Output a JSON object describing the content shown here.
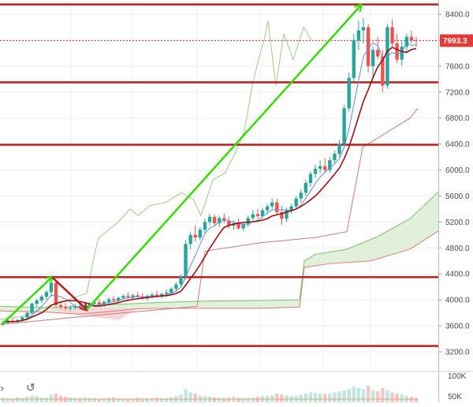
{
  "chart_data": {
    "type": "candlestick",
    "y_axis": {
      "ticks": [
        "8400.0",
        "8000.0",
        "7600.0",
        "7200.0",
        "6800.0",
        "6400.0",
        "6000.0",
        "5600.0",
        "5200.0",
        "4800.0",
        "4400.0",
        "4000.0",
        "3600.0",
        "3200.0"
      ],
      "tick_values": [
        8400,
        8000,
        7600,
        7200,
        6800,
        6400,
        6000,
        5600,
        5200,
        4800,
        4400,
        4000,
        3600,
        3200
      ],
      "range": [
        3050,
        8560
      ],
      "side": "right"
    },
    "volume_axis": {
      "ticks": [
        "100K",
        "50K"
      ],
      "tick_values": [
        100000,
        50000
      ]
    },
    "current_price": {
      "label": "7993.3",
      "value": 7993.3,
      "color": "#e53935"
    },
    "horizontal_levels": [
      8550,
      7350,
      6390,
      4350,
      3290
    ],
    "arrows": [
      {
        "from": [
          3620,
          3620
        ],
        "to": [
          4350,
          4350
        ],
        "color": "#33dd00"
      },
      {
        "from": [
          4350,
          4350
        ],
        "to": [
          3850,
          3850
        ],
        "color": "#b71c1c"
      },
      {
        "from": [
          3850,
          3850
        ],
        "to": [
          8540,
          8540
        ],
        "color": "#33dd00"
      }
    ],
    "candles_ohlc": [
      [
        3620,
        3680,
        3600,
        3650
      ],
      [
        3650,
        3700,
        3630,
        3680
      ],
      [
        3680,
        3720,
        3650,
        3660
      ],
      [
        3660,
        3700,
        3640,
        3690
      ],
      [
        3690,
        3750,
        3670,
        3730
      ],
      [
        3730,
        3820,
        3700,
        3800
      ],
      [
        3800,
        3960,
        3780,
        3940
      ],
      [
        3940,
        4020,
        3900,
        3990
      ],
      [
        3990,
        4080,
        3950,
        4050
      ],
      [
        4050,
        4150,
        4000,
        4120
      ],
      [
        4120,
        4290,
        4050,
        4260
      ],
      [
        4260,
        4300,
        3890,
        3920
      ],
      [
        3920,
        3980,
        3860,
        3890
      ],
      [
        3890,
        3950,
        3840,
        3870
      ],
      [
        3870,
        3920,
        3830,
        3880
      ],
      [
        3880,
        3940,
        3850,
        3900
      ],
      [
        3900,
        3960,
        3860,
        3870
      ],
      [
        3870,
        3930,
        3840,
        3910
      ],
      [
        3910,
        3970,
        3880,
        3940
      ],
      [
        3940,
        4000,
        3900,
        3960
      ],
      [
        3960,
        4010,
        3920,
        3930
      ],
      [
        3930,
        3990,
        3900,
        3970
      ],
      [
        3970,
        4040,
        3940,
        4010
      ],
      [
        4010,
        4060,
        3970,
        3990
      ],
      [
        3990,
        4050,
        3960,
        4030
      ],
      [
        4030,
        4080,
        4000,
        4060
      ],
      [
        4060,
        4110,
        4020,
        4040
      ],
      [
        4040,
        4090,
        4000,
        4070
      ],
      [
        4070,
        4120,
        4030,
        4050
      ],
      [
        4050,
        4100,
        4000,
        4020
      ],
      [
        4020,
        4080,
        3990,
        4060
      ],
      [
        4060,
        4110,
        4020,
        4080
      ],
      [
        4080,
        4140,
        4040,
        4060
      ],
      [
        4060,
        4110,
        4020,
        4090
      ],
      [
        4090,
        4160,
        4050,
        4110
      ],
      [
        4110,
        4200,
        4080,
        4170
      ],
      [
        4170,
        4280,
        4140,
        4240
      ],
      [
        4240,
        4390,
        4200,
        4360
      ],
      [
        4360,
        4920,
        4320,
        4860
      ],
      [
        4860,
        5050,
        4780,
        5000
      ],
      [
        5000,
        5150,
        4900,
        4960
      ],
      [
        4960,
        5120,
        4920,
        5080
      ],
      [
        5080,
        5250,
        5020,
        5200
      ],
      [
        5200,
        5330,
        5150,
        5280
      ],
      [
        5280,
        5320,
        5150,
        5180
      ],
      [
        5180,
        5300,
        5120,
        5260
      ],
      [
        5260,
        5330,
        5180,
        5220
      ],
      [
        5220,
        5280,
        5100,
        5140
      ],
      [
        5140,
        5220,
        5080,
        5180
      ],
      [
        5180,
        5250,
        5080,
        5100
      ],
      [
        5100,
        5200,
        5060,
        5160
      ],
      [
        5160,
        5300,
        5120,
        5260
      ],
      [
        5260,
        5380,
        5220,
        5320
      ],
      [
        5320,
        5400,
        5250,
        5290
      ],
      [
        5290,
        5420,
        5260,
        5380
      ],
      [
        5380,
        5480,
        5330,
        5440
      ],
      [
        5440,
        5560,
        5400,
        5500
      ],
      [
        5500,
        5560,
        5300,
        5350
      ],
      [
        5350,
        5450,
        5150,
        5250
      ],
      [
        5250,
        5420,
        5200,
        5380
      ],
      [
        5380,
        5480,
        5330,
        5440
      ],
      [
        5440,
        5600,
        5400,
        5560
      ],
      [
        5560,
        5700,
        5500,
        5650
      ],
      [
        5650,
        5850,
        5600,
        5800
      ],
      [
        5800,
        5980,
        5740,
        5940
      ],
      [
        5940,
        6080,
        5880,
        6020
      ],
      [
        6020,
        6150,
        5950,
        6060
      ],
      [
        6060,
        6180,
        5960,
        6000
      ],
      [
        6000,
        6200,
        5960,
        6150
      ],
      [
        6150,
        6300,
        6100,
        6250
      ],
      [
        6250,
        6460,
        6200,
        6400
      ],
      [
        6400,
        7000,
        6350,
        6950
      ],
      [
        6950,
        7500,
        6900,
        7420
      ],
      [
        7420,
        8100,
        7350,
        8000
      ],
      [
        8000,
        8300,
        7850,
        8150
      ],
      [
        8150,
        8340,
        7950,
        8200
      ],
      [
        8200,
        8250,
        7500,
        7600
      ],
      [
        7600,
        7900,
        7400,
        7850
      ],
      [
        7850,
        8050,
        7700,
        7750
      ],
      [
        7750,
        7850,
        7200,
        7300
      ],
      [
        7300,
        8250,
        7250,
        8200
      ],
      [
        8200,
        8320,
        7900,
        7950
      ],
      [
        7950,
        8100,
        7650,
        7700
      ],
      [
        7700,
        8000,
        7600,
        7900
      ],
      [
        7900,
        8100,
        7800,
        8050
      ],
      [
        8050,
        8150,
        7950,
        8000
      ],
      [
        8000,
        8050,
        7900,
        7993
      ]
    ],
    "volume": [
      20,
      18,
      15,
      22,
      18,
      25,
      30,
      28,
      22,
      20,
      35,
      40,
      30,
      25,
      22,
      20,
      18,
      22,
      20,
      18,
      16,
      18,
      20,
      22,
      18,
      16,
      15,
      18,
      20,
      16,
      18,
      20,
      22,
      18,
      20,
      24,
      28,
      35,
      60,
      45,
      40,
      30,
      28,
      25,
      22,
      20,
      18,
      22,
      25,
      20,
      18,
      20,
      22,
      25,
      28,
      30,
      32,
      40,
      35,
      30,
      28,
      30,
      35,
      40,
      45,
      42,
      40,
      38,
      40,
      45,
      50,
      55,
      60,
      70,
      65,
      60,
      75,
      55,
      50,
      65,
      55,
      45,
      40,
      35,
      30,
      25,
      20
    ]
  },
  "toolbar": {
    "arrow_icon": "chevron-right-icon",
    "reset_icon": "undo-circle-icon"
  }
}
